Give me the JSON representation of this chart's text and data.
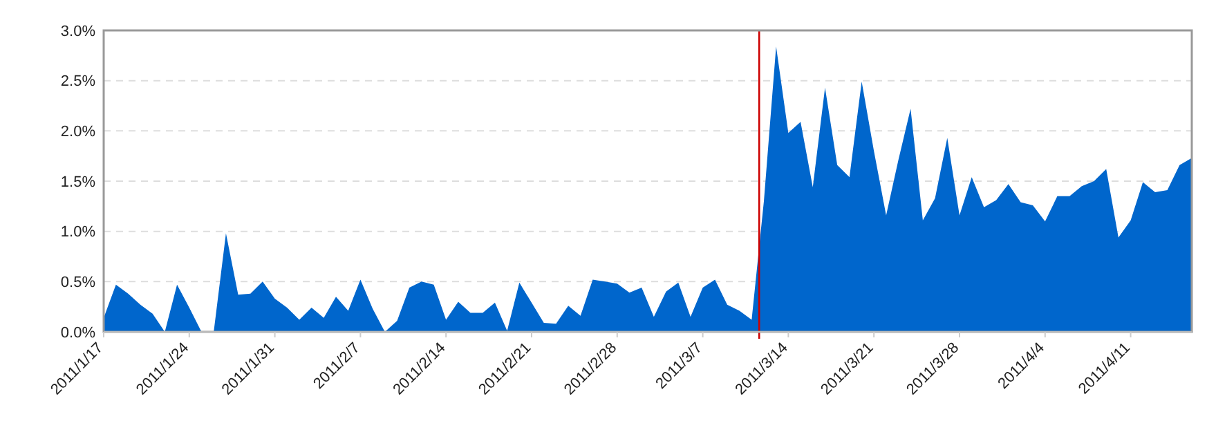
{
  "chart_data": {
    "type": "area",
    "x": [
      "2011-01-17",
      "2011-01-18",
      "2011-01-19",
      "2011-01-20",
      "2011-01-21",
      "2011-01-22",
      "2011-01-23",
      "2011-01-24",
      "2011-01-25",
      "2011-01-26",
      "2011-01-27",
      "2011-01-28",
      "2011-01-29",
      "2011-01-30",
      "2011-01-31",
      "2011-02-01",
      "2011-02-02",
      "2011-02-03",
      "2011-02-04",
      "2011-02-05",
      "2011-02-06",
      "2011-02-07",
      "2011-02-08",
      "2011-02-09",
      "2011-02-10",
      "2011-02-11",
      "2011-02-12",
      "2011-02-13",
      "2011-02-14",
      "2011-02-15",
      "2011-02-16",
      "2011-02-17",
      "2011-02-18",
      "2011-02-19",
      "2011-02-20",
      "2011-02-21",
      "2011-02-22",
      "2011-02-23",
      "2011-02-24",
      "2011-02-25",
      "2011-02-26",
      "2011-02-27",
      "2011-02-28",
      "2011-03-01",
      "2011-03-02",
      "2011-03-03",
      "2011-03-04",
      "2011-03-05",
      "2011-03-06",
      "2011-03-07",
      "2011-03-08",
      "2011-03-09",
      "2011-03-10",
      "2011-03-11",
      "2011-03-12",
      "2011-03-13",
      "2011-03-14",
      "2011-03-15",
      "2011-03-16",
      "2011-03-17",
      "2011-03-18",
      "2011-03-19",
      "2011-03-20",
      "2011-03-21",
      "2011-03-22",
      "2011-03-23",
      "2011-03-24",
      "2011-03-25",
      "2011-03-26",
      "2011-03-27",
      "2011-03-28",
      "2011-03-29",
      "2011-03-30",
      "2011-03-31",
      "2011-04-01",
      "2011-04-02",
      "2011-04-03",
      "2011-04-04",
      "2011-04-05",
      "2011-04-06",
      "2011-04-07",
      "2011-04-08",
      "2011-04-09",
      "2011-04-10",
      "2011-04-11",
      "2011-04-12",
      "2011-04-13",
      "2011-04-14",
      "2011-04-15",
      "2011-04-16"
    ],
    "series": [
      {
        "color": "#0066cc",
        "values": [
          0.14,
          0.47,
          0.38,
          0.27,
          0.18,
          0.0,
          0.47,
          0.24,
          0.0,
          0.0,
          0.98,
          0.37,
          0.38,
          0.5,
          0.33,
          0.24,
          0.12,
          0.24,
          0.14,
          0.35,
          0.21,
          0.52,
          0.23,
          0.0,
          0.11,
          0.44,
          0.5,
          0.47,
          0.12,
          0.3,
          0.19,
          0.19,
          0.29,
          0.01,
          0.49,
          0.29,
          0.09,
          0.08,
          0.26,
          0.16,
          0.52,
          0.5,
          0.48,
          0.39,
          0.44,
          0.15,
          0.4,
          0.49,
          0.15,
          0.44,
          0.52,
          0.27,
          0.21,
          0.12,
          1.3,
          2.84,
          1.98,
          2.09,
          1.44,
          2.43,
          1.66,
          1.54,
          2.49,
          1.8,
          1.16,
          1.71,
          2.22,
          1.11,
          1.33,
          1.93,
          1.16,
          1.54,
          1.24,
          1.31,
          1.47,
          1.29,
          1.26,
          1.1,
          1.35,
          1.35,
          1.45,
          1.5,
          1.62,
          0.94,
          1.11,
          1.49,
          1.39,
          1.41,
          1.66,
          1.73
        ]
      }
    ],
    "xlim": [
      "2011-01-17",
      "2011-04-16"
    ],
    "xticks": [
      {
        "value": "2011-01-17",
        "label": "2011/1/17"
      },
      {
        "value": "2011-01-24",
        "label": "2011/1/24"
      },
      {
        "value": "2011-01-31",
        "label": "2011/1/31"
      },
      {
        "value": "2011-02-07",
        "label": "2011/2/7"
      },
      {
        "value": "2011-02-14",
        "label": "2011/2/14"
      },
      {
        "value": "2011-02-21",
        "label": "2011/2/21"
      },
      {
        "value": "2011-02-28",
        "label": "2011/2/28"
      },
      {
        "value": "2011-03-07",
        "label": "2011/3/7"
      },
      {
        "value": "2011-03-14",
        "label": "2011/3/14"
      },
      {
        "value": "2011-03-21",
        "label": "2011/3/21"
      },
      {
        "value": "2011-03-28",
        "label": "2011/3/28"
      },
      {
        "value": "2011-04-04",
        "label": "2011/4/4"
      },
      {
        "value": "2011-04-11",
        "label": "2011/4/11"
      }
    ],
    "ylim": [
      0,
      3
    ],
    "yticks": [
      {
        "value": 0,
        "label": "0.0%"
      },
      {
        "value": 0.5,
        "label": "0.5%"
      },
      {
        "value": 1,
        "label": "1.0%"
      },
      {
        "value": 1.5,
        "label": "1.5%"
      },
      {
        "value": 2,
        "label": "2.0%"
      },
      {
        "value": 2.5,
        "label": "2.5%"
      },
      {
        "value": 3,
        "label": "3.0%"
      }
    ],
    "grid": "y",
    "ref_lines": [
      {
        "axis": "x",
        "value": "2011-03-11T14:46",
        "color": "#cc0000"
      }
    ]
  }
}
